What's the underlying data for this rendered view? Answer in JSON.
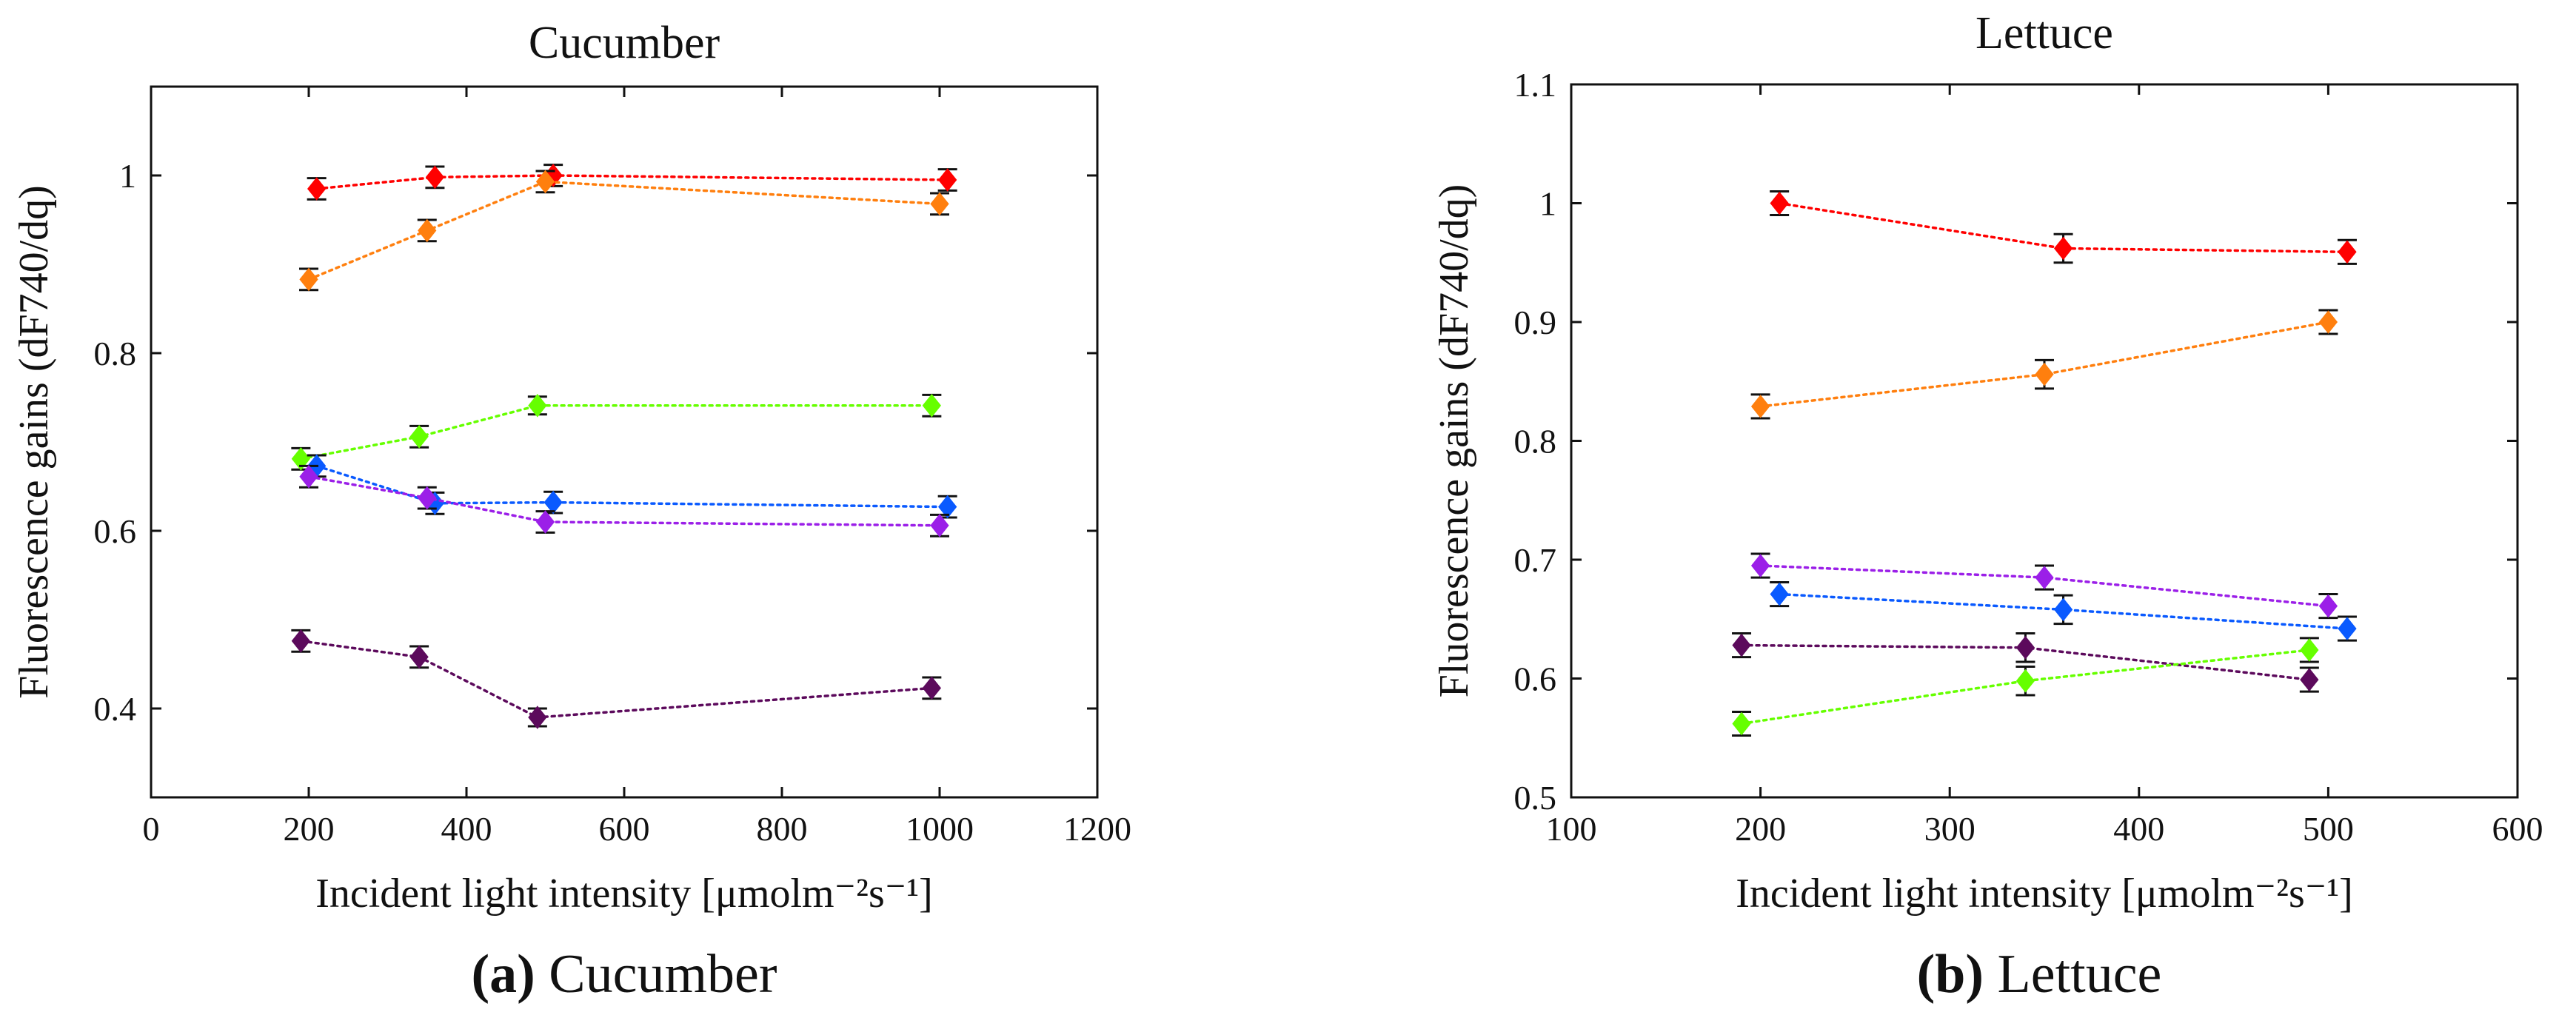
{
  "chart_data": [
    {
      "type": "scatter",
      "title": "Cucumber",
      "xlabel": "Incident light intensity [μmolm⁻²s⁻¹]",
      "ylabel": "Fluorescence gains (dF740/dq)",
      "caption_letter": "(a)",
      "caption_text": " Cucumber",
      "xlim": [
        0,
        1200
      ],
      "ylim": [
        0.3,
        1.1
      ],
      "xticks": [
        0,
        200,
        400,
        600,
        800,
        1000,
        1200
      ],
      "yticks": [
        0.4,
        0.6,
        0.8,
        1.0
      ],
      "ytick_labels": [
        "0.4",
        "0.6",
        "0.8",
        "1"
      ],
      "grid": false,
      "series": [
        {
          "color": "#ff0000",
          "x": [
            210,
            360,
            510,
            1010
          ],
          "y": [
            0.985,
            0.998,
            1.0,
            0.995
          ],
          "err": [
            0.012,
            0.012,
            0.012,
            0.012
          ]
        },
        {
          "color": "#ff7f0e",
          "x": [
            200,
            350,
            500,
            1000
          ],
          "y": [
            0.883,
            0.938,
            0.993,
            0.968
          ],
          "err": [
            0.012,
            0.012,
            0.012,
            0.012
          ]
        },
        {
          "color": "#66ff00",
          "x": [
            190,
            340,
            490,
            990
          ],
          "y": [
            0.681,
            0.706,
            0.741,
            0.741
          ],
          "err": [
            0.012,
            0.012,
            0.01,
            0.012
          ]
        },
        {
          "color": "#0a5aff",
          "x": [
            210,
            360,
            510,
            1010
          ],
          "y": [
            0.673,
            0.631,
            0.632,
            0.627
          ],
          "err": [
            0.012,
            0.012,
            0.012,
            0.012
          ]
        },
        {
          "color": "#9b1fe8",
          "x": [
            200,
            350,
            500,
            1000
          ],
          "y": [
            0.661,
            0.637,
            0.61,
            0.606
          ],
          "err": [
            0.012,
            0.012,
            0.012,
            0.012
          ]
        },
        {
          "color": "#5c0a5c",
          "x": [
            190,
            340,
            490,
            990
          ],
          "y": [
            0.476,
            0.458,
            0.39,
            0.423
          ],
          "err": [
            0.012,
            0.012,
            0.01,
            0.012
          ]
        }
      ]
    },
    {
      "type": "scatter",
      "title": "Lettuce",
      "xlabel": "Incident light intensity [μmolm⁻²s⁻¹]",
      "ylabel": "Fluorescence gains (dF740/dq)",
      "caption_letter": "(b)",
      "caption_text": " Lettuce",
      "xlim": [
        100,
        600
      ],
      "ylim": [
        0.5,
        1.1
      ],
      "xticks": [
        100,
        200,
        300,
        400,
        500,
        600
      ],
      "yticks": [
        0.5,
        0.6,
        0.7,
        0.8,
        0.9,
        1.0,
        1.1
      ],
      "ytick_labels": [
        "0.5",
        "0.6",
        "0.7",
        "0.8",
        "0.9",
        "1",
        "1.1"
      ],
      "grid": false,
      "series": [
        {
          "color": "#ff0000",
          "x": [
            210,
            360,
            510
          ],
          "y": [
            1.0,
            0.962,
            0.959
          ],
          "err": [
            0.01,
            0.012,
            0.01
          ]
        },
        {
          "color": "#ff7f0e",
          "x": [
            200,
            350,
            500
          ],
          "y": [
            0.829,
            0.856,
            0.9
          ],
          "err": [
            0.01,
            0.012,
            0.01
          ]
        },
        {
          "color": "#9b1fe8",
          "x": [
            200,
            350,
            500
          ],
          "y": [
            0.695,
            0.685,
            0.661
          ],
          "err": [
            0.01,
            0.01,
            0.01
          ]
        },
        {
          "color": "#0a5aff",
          "x": [
            210,
            360,
            510
          ],
          "y": [
            0.671,
            0.658,
            0.642
          ],
          "err": [
            0.01,
            0.012,
            0.01
          ]
        },
        {
          "color": "#5c0a5c",
          "x": [
            190,
            340,
            490
          ],
          "y": [
            0.628,
            0.626,
            0.599
          ],
          "err": [
            0.01,
            0.012,
            0.01
          ]
        },
        {
          "color": "#66ff00",
          "x": [
            190,
            340,
            490
          ],
          "y": [
            0.562,
            0.598,
            0.624
          ],
          "err": [
            0.01,
            0.012,
            0.01
          ]
        }
      ]
    }
  ]
}
